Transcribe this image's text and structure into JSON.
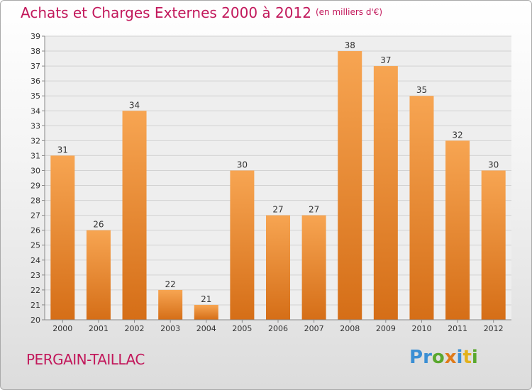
{
  "chart_data": {
    "type": "bar",
    "title": "Achats et Charges Externes 2000 à 2012",
    "unit": "(en milliers d'€)",
    "categories": [
      "2000",
      "2001",
      "2002",
      "2003",
      "2004",
      "2005",
      "2006",
      "2007",
      "2008",
      "2009",
      "2010",
      "2011",
      "2012"
    ],
    "values": [
      31,
      26,
      34,
      22,
      21,
      30,
      27,
      27,
      38,
      37,
      35,
      32,
      30
    ],
    "ylim": [
      20,
      39
    ],
    "ytick_step": 1,
    "grid": true,
    "bar_color": "#e8832a"
  },
  "footer": {
    "commune": "PERGAIN-TAILLAC",
    "logo_letters": [
      {
        "ch": "P",
        "color": "#3b8fd4"
      },
      {
        "ch": "r",
        "color": "#3b8fd4"
      },
      {
        "ch": "o",
        "color": "#5aa82e"
      },
      {
        "ch": "x",
        "color": "#e07b1a"
      },
      {
        "ch": "i",
        "color": "#3b8fd4"
      },
      {
        "ch": "t",
        "color": "#e2b11c"
      },
      {
        "ch": "i",
        "color": "#5aa82e"
      }
    ]
  }
}
